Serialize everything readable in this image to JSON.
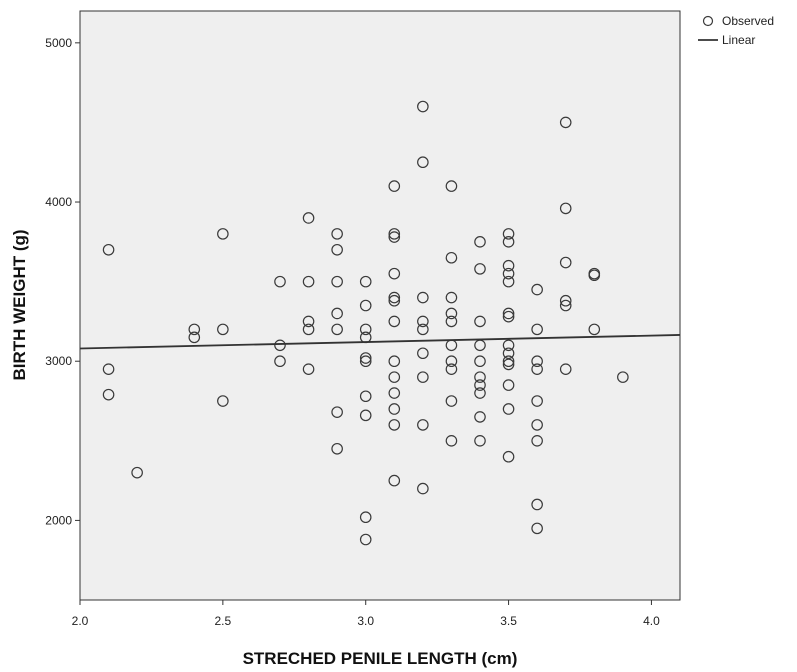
{
  "chart_data": {
    "type": "scatter",
    "xlabel": "STRECHED PENILE LENGTH (cm)",
    "ylabel": "BIRTH WEIGHT (g)",
    "xlim": [
      2.0,
      4.1
    ],
    "ylim": [
      1500,
      5200
    ],
    "x_ticks": [
      "2.0",
      "2.5",
      "3.0",
      "3.5",
      "4.0"
    ],
    "y_ticks": [
      "2000",
      "3000",
      "4000",
      "5000"
    ],
    "grid": false,
    "legend": {
      "placement": "top-right outside",
      "entries": [
        "Observed",
        "Linear"
      ]
    },
    "series": [
      {
        "name": "Observed",
        "marker": "open-circle",
        "points": [
          [
            2.1,
            3700
          ],
          [
            2.1,
            2950
          ],
          [
            2.1,
            2790
          ],
          [
            2.2,
            2300
          ],
          [
            2.4,
            3200
          ],
          [
            2.4,
            3150
          ],
          [
            2.5,
            3800
          ],
          [
            2.5,
            3200
          ],
          [
            2.5,
            2750
          ],
          [
            2.7,
            3500
          ],
          [
            2.7,
            3100
          ],
          [
            2.7,
            3000
          ],
          [
            2.8,
            3900
          ],
          [
            2.8,
            3500
          ],
          [
            2.8,
            3250
          ],
          [
            2.8,
            3200
          ],
          [
            2.8,
            2950
          ],
          [
            2.9,
            3800
          ],
          [
            2.9,
            3700
          ],
          [
            2.9,
            3500
          ],
          [
            2.9,
            3300
          ],
          [
            2.9,
            3200
          ],
          [
            2.9,
            2680
          ],
          [
            2.9,
            2450
          ],
          [
            3.0,
            3500
          ],
          [
            3.0,
            3350
          ],
          [
            3.0,
            3200
          ],
          [
            3.0,
            3150
          ],
          [
            3.0,
            3000
          ],
          [
            3.0,
            3020
          ],
          [
            3.0,
            2780
          ],
          [
            3.0,
            2660
          ],
          [
            3.0,
            2020
          ],
          [
            3.0,
            1880
          ],
          [
            3.1,
            4100
          ],
          [
            3.1,
            3800
          ],
          [
            3.1,
            3780
          ],
          [
            3.1,
            3550
          ],
          [
            3.1,
            3400
          ],
          [
            3.1,
            3380
          ],
          [
            3.1,
            3250
          ],
          [
            3.1,
            3000
          ],
          [
            3.1,
            2900
          ],
          [
            3.1,
            2800
          ],
          [
            3.1,
            2700
          ],
          [
            3.1,
            2600
          ],
          [
            3.1,
            2250
          ],
          [
            3.2,
            4600
          ],
          [
            3.2,
            4250
          ],
          [
            3.2,
            3400
          ],
          [
            3.2,
            3250
          ],
          [
            3.2,
            3200
          ],
          [
            3.2,
            3050
          ],
          [
            3.2,
            2900
          ],
          [
            3.2,
            2600
          ],
          [
            3.2,
            2200
          ],
          [
            3.3,
            4100
          ],
          [
            3.3,
            3650
          ],
          [
            3.3,
            3400
          ],
          [
            3.3,
            3300
          ],
          [
            3.3,
            3250
          ],
          [
            3.3,
            3100
          ],
          [
            3.3,
            3000
          ],
          [
            3.3,
            2950
          ],
          [
            3.3,
            2750
          ],
          [
            3.3,
            2500
          ],
          [
            3.4,
            3750
          ],
          [
            3.4,
            3580
          ],
          [
            3.4,
            3250
          ],
          [
            3.4,
            3100
          ],
          [
            3.4,
            3000
          ],
          [
            3.4,
            2900
          ],
          [
            3.4,
            2850
          ],
          [
            3.4,
            2800
          ],
          [
            3.4,
            2650
          ],
          [
            3.4,
            2500
          ],
          [
            3.5,
            3800
          ],
          [
            3.5,
            3750
          ],
          [
            3.5,
            3600
          ],
          [
            3.5,
            3550
          ],
          [
            3.5,
            3500
          ],
          [
            3.5,
            3300
          ],
          [
            3.5,
            3280
          ],
          [
            3.5,
            3100
          ],
          [
            3.5,
            3050
          ],
          [
            3.5,
            3000
          ],
          [
            3.5,
            2980
          ],
          [
            3.5,
            2850
          ],
          [
            3.5,
            2700
          ],
          [
            3.5,
            2400
          ],
          [
            3.6,
            3450
          ],
          [
            3.6,
            3200
          ],
          [
            3.6,
            3000
          ],
          [
            3.6,
            2950
          ],
          [
            3.6,
            2750
          ],
          [
            3.6,
            2600
          ],
          [
            3.6,
            2500
          ],
          [
            3.6,
            2100
          ],
          [
            3.6,
            1950
          ],
          [
            3.7,
            4500
          ],
          [
            3.7,
            3960
          ],
          [
            3.7,
            3620
          ],
          [
            3.7,
            3380
          ],
          [
            3.7,
            3350
          ],
          [
            3.7,
            2950
          ],
          [
            3.8,
            3550
          ],
          [
            3.8,
            3540
          ],
          [
            3.8,
            3200
          ],
          [
            3.9,
            2900
          ]
        ]
      },
      {
        "name": "Linear",
        "line": [
          [
            2.0,
            3080
          ],
          [
            4.1,
            3165
          ]
        ]
      }
    ]
  },
  "colors": {
    "plot_background": "#efefef",
    "marker_stroke": "#3a3a3a",
    "line": "#333333",
    "axis": "#333333"
  }
}
